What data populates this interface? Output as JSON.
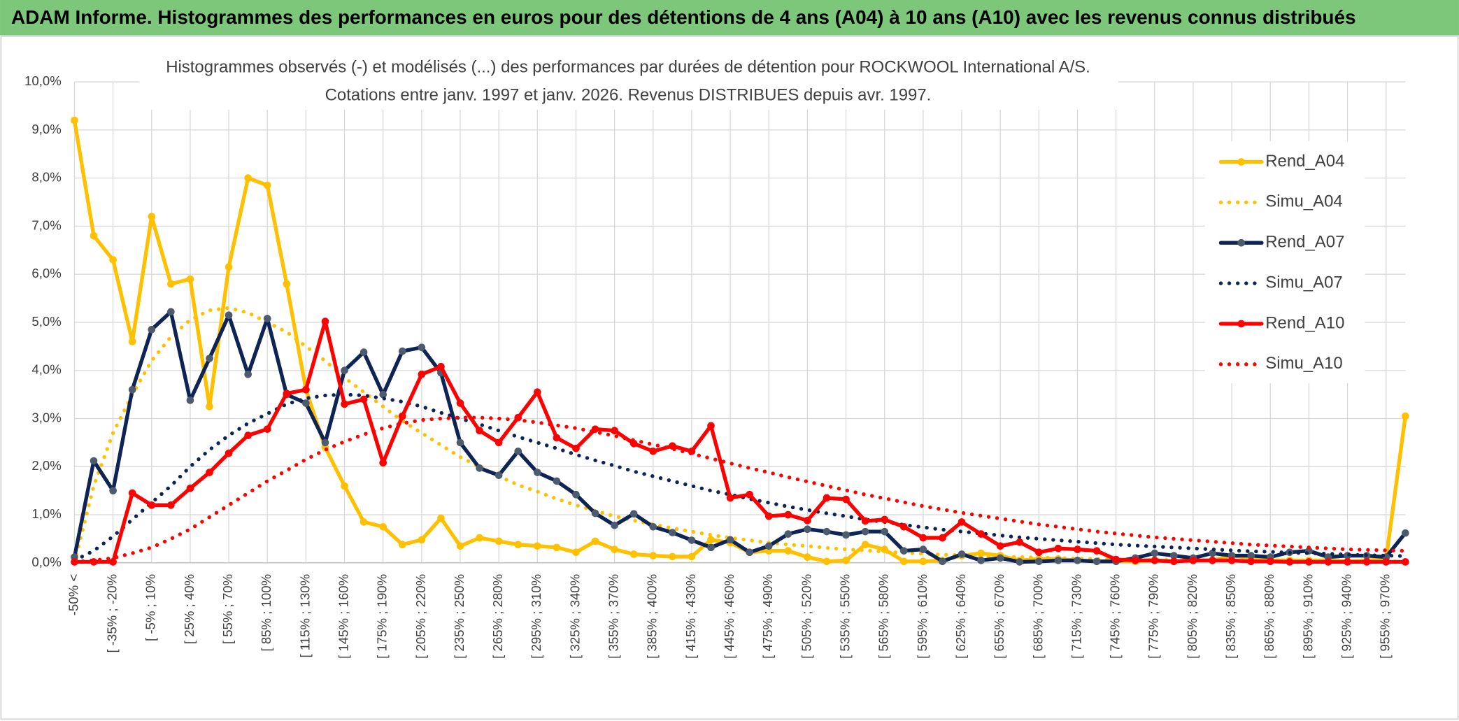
{
  "header": {
    "title": "ADAM Informe. Histogrammes des performances en euros pour des détentions de 4 ans (A04) à 10 ans (A10) avec les revenus connus distribués"
  },
  "chart_data": {
    "type": "line",
    "title": "Histogrammes observés (-) et modélisés (...) des performances par durées de détention pour ROCKWOOL International A/S.",
    "subtitle": "Cotations entre janv. 1997 et janv. 2026. Revenus DISTRIBUES depuis avr. 1997.",
    "categories": [
      "-50% <",
      null,
      "[ -35% ; -20%",
      null,
      "[ -5% ; 10%",
      null,
      "[ 25% ; 40%",
      null,
      "[ 55% ; 70%",
      null,
      "[ 85% ; 100%",
      null,
      "[ 115% ; 130%",
      null,
      "[ 145% ; 160%",
      null,
      "[ 175% ; 190%",
      null,
      "[ 205% ; 220%",
      null,
      "[ 235% ; 250%",
      null,
      "[ 265% ; 280%",
      null,
      "[ 295% ; 310%",
      null,
      "[ 325% ; 340%",
      null,
      "[ 355% ; 370%",
      null,
      "[ 385% ; 400%",
      null,
      "[ 415% ; 430%",
      null,
      "[ 445% ; 460%",
      null,
      "[ 475% ; 490%",
      null,
      "[ 505% ; 520%",
      null,
      "[ 535% ; 550%",
      null,
      "[ 565% ; 580%",
      null,
      "[ 595% ; 610%",
      null,
      "[ 625% ; 640%",
      null,
      "[ 655% ; 670%",
      null,
      "[ 685% ; 700%",
      null,
      "[ 715% ; 730%",
      null,
      "[ 745% ; 760%",
      null,
      "[ 775% ; 790%",
      null,
      "[ 805% ; 820%",
      null,
      "[ 835% ; 850%",
      null,
      "[ 865% ; 880%",
      null,
      "[ 895% ; 910%",
      null,
      "[ 925% ; 940%",
      null,
      "[ 955% ; 970%",
      null
    ],
    "ylim": [
      0,
      10
    ],
    "yticks": [
      {
        "value": 0,
        "label": "0,0%"
      },
      {
        "value": 1,
        "label": "1,0%"
      },
      {
        "value": 2,
        "label": "2,0%"
      },
      {
        "value": 3,
        "label": "3,0%"
      },
      {
        "value": 4,
        "label": "4,0%"
      },
      {
        "value": 5,
        "label": "5,0%"
      },
      {
        "value": 6,
        "label": "6,0%"
      },
      {
        "value": 7,
        "label": "7,0%"
      },
      {
        "value": 8,
        "label": "8,0%"
      },
      {
        "value": 9,
        "label": "9,0%"
      },
      {
        "value": 10,
        "label": "10,0%"
      }
    ],
    "grid": true,
    "legend_position": "right",
    "series": [
      {
        "name": "Rend_A04",
        "color": "#ffc000",
        "marker_color": "#ffc000",
        "line_style": "solid",
        "markers": true,
        "values": [
          9.2,
          6.8,
          6.3,
          4.6,
          7.2,
          5.8,
          5.9,
          3.25,
          6.15,
          8.0,
          7.85,
          5.8,
          3.6,
          2.4,
          1.6,
          0.85,
          0.75,
          0.38,
          0.48,
          0.93,
          0.35,
          0.52,
          0.45,
          0.38,
          0.35,
          0.32,
          0.22,
          0.45,
          0.28,
          0.18,
          0.15,
          0.13,
          0.13,
          0.48,
          0.42,
          0.22,
          0.25,
          0.25,
          0.12,
          0.03,
          0.05,
          0.38,
          0.28,
          0.03,
          0.03,
          0.05,
          0.15,
          0.2,
          0.15,
          0.05,
          0.08,
          0.08,
          0.05,
          0.03,
          0.03,
          0.03,
          0.05,
          0.03,
          0.05,
          0.05,
          0.15,
          0.1,
          0.05,
          0.05,
          0.05,
          0.05,
          0.03,
          0.05,
          0.08,
          3.05
        ]
      },
      {
        "name": "Simu_A04",
        "color": "#ffc000",
        "line_style": "dotted",
        "markers": false,
        "values": [
          0.0,
          1.6,
          2.7,
          3.5,
          4.2,
          4.7,
          5.05,
          5.25,
          5.3,
          5.2,
          5.0,
          4.8,
          4.5,
          4.2,
          3.85,
          3.55,
          3.25,
          2.95,
          2.7,
          2.45,
          2.2,
          2.0,
          1.8,
          1.62,
          1.48,
          1.33,
          1.2,
          1.08,
          0.97,
          0.88,
          0.8,
          0.72,
          0.65,
          0.58,
          0.52,
          0.47,
          0.42,
          0.38,
          0.35,
          0.31,
          0.28,
          0.26,
          0.23,
          0.21,
          0.19,
          0.17,
          0.16,
          0.14,
          0.13,
          0.12,
          0.11,
          0.1,
          0.09,
          0.08,
          0.07,
          0.07,
          0.06,
          0.06,
          0.05,
          0.05,
          0.05,
          0.04,
          0.04,
          0.04,
          0.04,
          0.03,
          0.03,
          0.03,
          0.03,
          0.03
        ]
      },
      {
        "name": "Rend_A07",
        "color": "#0d2455",
        "marker_color": "#4d5b6f",
        "line_style": "solid",
        "markers": true,
        "values": [
          0.12,
          2.12,
          1.5,
          3.6,
          4.85,
          5.22,
          3.38,
          4.25,
          5.15,
          3.92,
          5.08,
          3.5,
          3.32,
          2.5,
          4.0,
          4.38,
          3.5,
          4.4,
          4.48,
          3.95,
          2.5,
          1.97,
          1.82,
          2.32,
          1.88,
          1.7,
          1.42,
          1.03,
          0.78,
          1.02,
          0.75,
          0.63,
          0.47,
          0.32,
          0.48,
          0.22,
          0.35,
          0.6,
          0.7,
          0.65,
          0.58,
          0.65,
          0.65,
          0.25,
          0.28,
          0.03,
          0.18,
          0.05,
          0.1,
          0.02,
          0.03,
          0.05,
          0.05,
          0.03,
          0.03,
          0.1,
          0.2,
          0.15,
          0.1,
          0.2,
          0.15,
          0.15,
          0.12,
          0.22,
          0.25,
          0.12,
          0.15,
          0.15,
          0.12,
          0.62
        ]
      },
      {
        "name": "Simu_A07",
        "color": "#0d2455",
        "line_style": "dotted",
        "markers": false,
        "values": [
          0.05,
          0.25,
          0.55,
          0.9,
          1.25,
          1.6,
          2.0,
          2.35,
          2.65,
          2.9,
          3.1,
          3.3,
          3.42,
          3.48,
          3.5,
          3.48,
          3.42,
          3.35,
          3.25,
          3.12,
          3.0,
          2.88,
          2.75,
          2.62,
          2.5,
          2.38,
          2.25,
          2.13,
          2.02,
          1.9,
          1.8,
          1.7,
          1.6,
          1.5,
          1.42,
          1.33,
          1.25,
          1.17,
          1.1,
          1.03,
          0.97,
          0.9,
          0.85,
          0.79,
          0.74,
          0.69,
          0.65,
          0.61,
          0.57,
          0.53,
          0.5,
          0.47,
          0.44,
          0.41,
          0.38,
          0.36,
          0.34,
          0.32,
          0.3,
          0.28,
          0.26,
          0.24,
          0.23,
          0.21,
          0.2,
          0.19,
          0.17,
          0.16,
          0.15,
          0.14
        ]
      },
      {
        "name": "Rend_A10",
        "color": "#ff0000",
        "marker_color": "#ff0000",
        "line_style": "solid",
        "markers": true,
        "values": [
          0.02,
          0.02,
          0.02,
          1.45,
          1.2,
          1.2,
          1.55,
          1.88,
          2.28,
          2.65,
          2.78,
          3.52,
          3.6,
          5.02,
          3.3,
          3.4,
          2.08,
          3.05,
          3.92,
          4.08,
          3.32,
          2.75,
          2.5,
          3.02,
          3.55,
          2.6,
          2.38,
          2.78,
          2.75,
          2.48,
          2.32,
          2.43,
          2.32,
          2.85,
          1.35,
          1.42,
          0.97,
          1.0,
          0.88,
          1.35,
          1.32,
          0.87,
          0.9,
          0.75,
          0.52,
          0.52,
          0.85,
          0.6,
          0.35,
          0.43,
          0.22,
          0.3,
          0.28,
          0.25,
          0.07,
          0.05,
          0.05,
          0.03,
          0.05,
          0.05,
          0.05,
          0.03,
          0.03,
          0.02,
          0.02,
          0.02,
          0.02,
          0.02,
          0.02,
          0.02
        ]
      },
      {
        "name": "Simu_A10",
        "color": "#ff0000",
        "line_style": "dotted",
        "markers": false,
        "values": [
          0.02,
          0.05,
          0.1,
          0.2,
          0.32,
          0.5,
          0.7,
          0.95,
          1.2,
          1.45,
          1.7,
          1.92,
          2.15,
          2.35,
          2.52,
          2.67,
          2.8,
          2.9,
          2.97,
          3.0,
          3.02,
          3.02,
          3.0,
          2.97,
          2.92,
          2.86,
          2.8,
          2.72,
          2.64,
          2.55,
          2.46,
          2.37,
          2.27,
          2.17,
          2.07,
          1.97,
          1.88,
          1.78,
          1.69,
          1.6,
          1.51,
          1.42,
          1.34,
          1.26,
          1.18,
          1.11,
          1.04,
          0.98,
          0.92,
          0.86,
          0.8,
          0.75,
          0.7,
          0.65,
          0.61,
          0.57,
          0.53,
          0.5,
          0.47,
          0.44,
          0.41,
          0.38,
          0.36,
          0.34,
          0.32,
          0.3,
          0.28,
          0.27,
          0.26,
          0.25
        ]
      }
    ]
  }
}
